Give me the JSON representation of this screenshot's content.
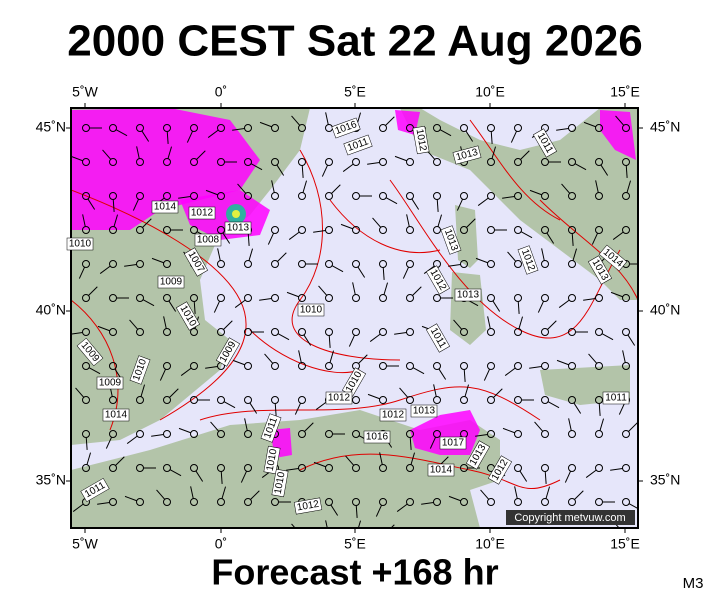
{
  "title": "2000 CEST Sat 22 Aug 2026",
  "lon_labels_top": [
    "5˚W",
    "0˚",
    "5˚E",
    "10˚E",
    "15˚E"
  ],
  "lon_labels_bottom": [
    "5˚W",
    "0˚",
    "5˚E",
    "10˚E",
    "15˚E"
  ],
  "lat_labels_left": [
    "45˚N",
    "40˚N",
    "35˚N"
  ],
  "lat_labels_right": [
    "45˚N",
    "40˚N",
    "35˚N"
  ],
  "isobar_labels": [
    "1016",
    "1011",
    "1012",
    "1013",
    "1011",
    "1014",
    "1012",
    "1013",
    "1008",
    "1010",
    "1013",
    "1012",
    "1014",
    "1013",
    "1009",
    "1007",
    "1012",
    "1013",
    "1010",
    "1010",
    "1011",
    "1009",
    "1009",
    "1010",
    "1009",
    "1010",
    "1012",
    "1014",
    "1011",
    "1012",
    "1013",
    "1016",
    "1017",
    "1014",
    "1013",
    "1012",
    "1011",
    "1010",
    "1010",
    "1011",
    "1012"
  ],
  "copyright": "Copyright metvuw.com",
  "footer": "Forecast +168 hr",
  "model": "M3"
}
